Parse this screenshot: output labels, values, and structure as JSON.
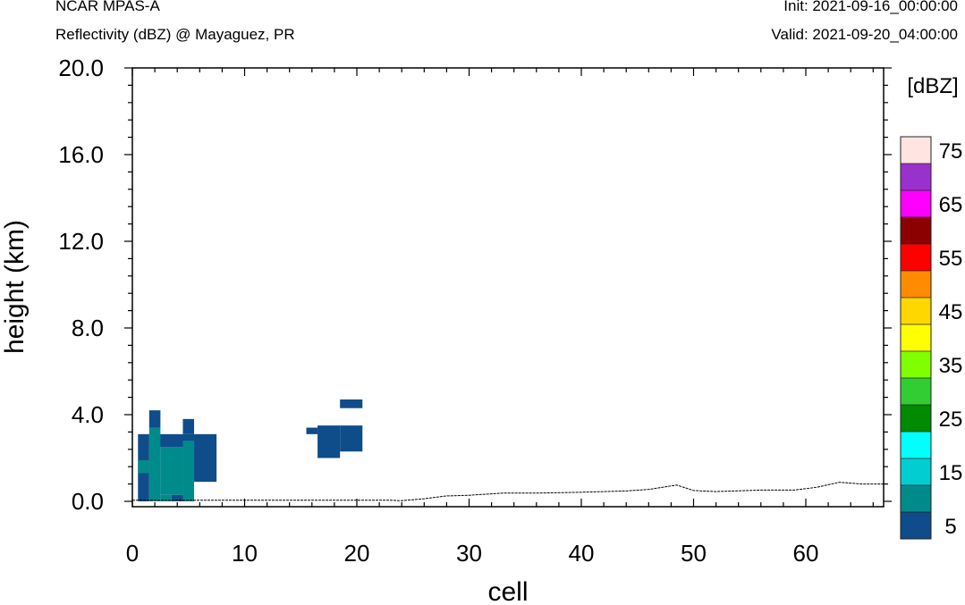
{
  "header": {
    "left_title": "NCAR MPAS-A",
    "left_subtitle": "Reflectivity (dBZ) @ Mayaguez, PR",
    "right_init": "Init: 2021-09-16_00:00:00",
    "right_valid": "Valid: 2021-09-20_04:00:00"
  },
  "chart_data": {
    "type": "heatmap",
    "xlabel": "cell",
    "ylabel": "height (km)",
    "xlim": [
      0,
      67
    ],
    "ylim": [
      0,
      20
    ],
    "x_ticks": [
      0,
      10,
      20,
      30,
      40,
      50,
      60
    ],
    "x_tick_labels": [
      "0",
      "10",
      "20",
      "30",
      "40",
      "50",
      "60"
    ],
    "y_ticks": [
      0,
      4,
      8,
      12,
      16,
      20
    ],
    "y_tick_labels": [
      "0.0",
      "4.0",
      "8.0",
      "12.0",
      "16.0",
      "20.0"
    ],
    "colorbar": {
      "title": "[dBZ]",
      "levels": [
        5,
        10,
        15,
        20,
        25,
        30,
        35,
        40,
        45,
        50,
        55,
        60,
        65,
        70,
        75
      ],
      "labels": [
        "5",
        "15",
        "25",
        "35",
        "45",
        "55",
        "65",
        "75"
      ],
      "colors": [
        "#0f4c8a",
        "#008b8b",
        "#00ced1",
        "#00ffff",
        "#008b00",
        "#32cd32",
        "#7fff00",
        "#ffff00",
        "#ffd700",
        "#ff8c00",
        "#ff0000",
        "#8b0000",
        "#ff00ff",
        "#9932cc",
        "#ffe4e1"
      ]
    },
    "cells": [
      {
        "x0": 0.5,
        "x1": 1.5,
        "y0": 0,
        "y1": 3.1,
        "dbz": 5
      },
      {
        "x0": 1.5,
        "x1": 2.5,
        "y0": 3.4,
        "y1": 4.2,
        "dbz": 5
      },
      {
        "x0": 1.5,
        "x1": 5.5,
        "y0": 2.5,
        "y1": 3.1,
        "dbz": 5
      },
      {
        "x0": 4.5,
        "x1": 5.5,
        "y0": 3.1,
        "y1": 3.8,
        "dbz": 5
      },
      {
        "x0": 5.5,
        "x1": 7.5,
        "y0": 0.9,
        "y1": 3.1,
        "dbz": 5
      },
      {
        "x0": 3.5,
        "x1": 4.5,
        "y0": 0,
        "y1": 0.3,
        "dbz": 5
      },
      {
        "x0": 0.5,
        "x1": 1.5,
        "y0": 1.3,
        "y1": 1.9,
        "dbz": 10
      },
      {
        "x0": 1.5,
        "x1": 2.5,
        "y0": 0,
        "y1": 3.4,
        "dbz": 10
      },
      {
        "x0": 2.5,
        "x1": 4.5,
        "y0": 0.3,
        "y1": 2.5,
        "dbz": 10
      },
      {
        "x0": 2.5,
        "x1": 3.5,
        "y0": 0,
        "y1": 0.3,
        "dbz": 10
      },
      {
        "x0": 4.5,
        "x1": 5.5,
        "y0": 0,
        "y1": 2.8,
        "dbz": 10
      },
      {
        "x0": 15.5,
        "x1": 16.5,
        "y0": 3.1,
        "y1": 3.4,
        "dbz": 5
      },
      {
        "x0": 16.5,
        "x1": 18.5,
        "y0": 2.0,
        "y1": 3.5,
        "dbz": 5
      },
      {
        "x0": 18.5,
        "x1": 20.5,
        "y0": 2.3,
        "y1": 3.5,
        "dbz": 5
      },
      {
        "x0": 18.5,
        "x1": 20.5,
        "y0": 4.3,
        "y1": 4.7,
        "dbz": 5
      }
    ],
    "terrain": {
      "x": [
        0,
        23,
        24,
        26,
        28,
        30,
        33,
        36,
        40,
        44,
        46,
        48.5,
        50,
        52,
        56,
        59,
        61,
        63,
        65,
        67
      ],
      "y": [
        0.05,
        0.05,
        0.03,
        0.12,
        0.25,
        0.28,
        0.38,
        0.38,
        0.42,
        0.48,
        0.55,
        0.75,
        0.5,
        0.45,
        0.52,
        0.52,
        0.65,
        0.88,
        0.8,
        0.8
      ]
    }
  }
}
